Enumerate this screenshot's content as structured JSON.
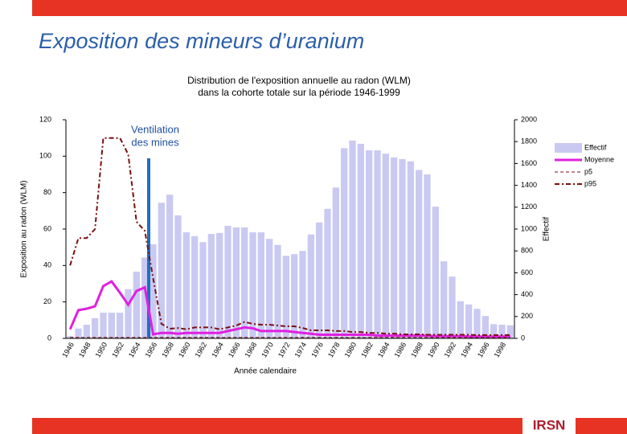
{
  "header": {
    "title": "Exposition des mineurs d’uranium",
    "logo": "IRSN"
  },
  "chart_data": {
    "type": "combo",
    "title": [
      "Distribution de l'exposition annuelle au radon (WLM)",
      "dans la cohorte totale sur la période 1946-1999"
    ],
    "xlabel": "Année calendaire",
    "ylabel": "Exposition au radon (WLM)",
    "y2label": "Effectif",
    "annotation": [
      "Ventilation",
      "des mines"
    ],
    "categories": [
      "1946",
      null,
      "1948",
      null,
      "1950",
      null,
      "1952",
      null,
      "1954",
      null,
      "1956",
      null,
      "1958",
      null,
      "1960",
      null,
      "1962",
      null,
      "1964",
      null,
      "1966",
      null,
      "1968",
      null,
      "1970",
      null,
      "1972",
      null,
      "1974",
      null,
      "1976",
      null,
      "1978",
      null,
      "1980",
      null,
      "1982",
      null,
      "1984",
      null,
      "1986",
      null,
      "1988",
      null,
      "1990",
      null,
      "1992",
      null,
      "1994",
      null,
      "1996",
      null,
      "1998",
      null
    ],
    "ylim": [
      0,
      120
    ],
    "yticks": [
      0,
      20,
      40,
      60,
      80,
      100,
      120
    ],
    "y2lim": [
      0,
      2000
    ],
    "y2ticks": [
      0,
      200,
      400,
      600,
      800,
      1000,
      1200,
      1400,
      1600,
      1800,
      2000
    ],
    "series": [
      {
        "name": "Effectif",
        "type": "bar",
        "axis": "y2",
        "color": "#c9c9f2",
        "values": [
          20,
          90,
          125,
          185,
          235,
          235,
          235,
          450,
          610,
          740,
          860,
          1240,
          1315,
          1125,
          970,
          935,
          880,
          955,
          965,
          1030,
          1015,
          1015,
          970,
          970,
          910,
          855,
          755,
          770,
          800,
          950,
          1060,
          1185,
          1380,
          1740,
          1810,
          1780,
          1720,
          1720,
          1690,
          1655,
          1640,
          1620,
          1540,
          1500,
          1205,
          705,
          565,
          340,
          310,
          270,
          205,
          130,
          125,
          120
        ]
      },
      {
        "name": "Moyenne",
        "type": "line",
        "color": "#e020e0",
        "width": 3,
        "dash": "solid",
        "values": [
          5,
          15.5,
          16.3,
          17.6,
          28.7,
          31.3,
          25,
          18.5,
          26,
          28,
          2.2,
          3,
          3,
          2.5,
          3,
          3,
          3,
          3,
          3,
          4,
          5,
          6,
          5.5,
          4,
          4,
          4,
          4,
          3.5,
          3,
          2.5,
          2,
          2,
          2,
          2,
          2,
          2,
          2,
          1.5,
          1.5,
          1.5,
          1.5,
          1.5,
          1.5,
          1.5,
          1.2,
          1.2,
          1.2,
          1.2,
          1,
          1,
          1,
          1,
          1,
          1
        ]
      },
      {
        "name": "p5",
        "type": "line",
        "color": "#7a1010",
        "width": 1,
        "dash": "dashed",
        "values": [
          0.5,
          0.5,
          0.5,
          0.5,
          0.5,
          0.5,
          0.5,
          0.5,
          0.5,
          0.5,
          0.5,
          0.5,
          0.5,
          0.5,
          0.5,
          0.5,
          0.5,
          0.5,
          0.5,
          0.5,
          0.5,
          0.5,
          0.5,
          0.5,
          0.5,
          0.5,
          0.5,
          0.5,
          0.5,
          0.5,
          0.5,
          0.5,
          0.5,
          0.5,
          0.5,
          0.5,
          0.5,
          0.5,
          0.5,
          0.5,
          0.5,
          0.5,
          0.5,
          0.5,
          0.5,
          0.5,
          0.5,
          0.5,
          0.5,
          0.5,
          0.5,
          0.5,
          0.5,
          0.5
        ]
      },
      {
        "name": "p95",
        "type": "line",
        "color": "#7a1010",
        "width": 2,
        "dash": "dashdot",
        "values": [
          40,
          55,
          55,
          60,
          110,
          110,
          110,
          101,
          64,
          59,
          33,
          8,
          5.3,
          5.7,
          5,
          6,
          6,
          6,
          5,
          6,
          7,
          9,
          8,
          7.5,
          7.5,
          7,
          6.6,
          6.6,
          5.7,
          4.4,
          4.4,
          4.4,
          4,
          4,
          3.5,
          3.5,
          3,
          3,
          2.6,
          2.6,
          2.2,
          2.2,
          2.2,
          2,
          2,
          2,
          2,
          2,
          2,
          1.8,
          1.8,
          1.8,
          1.8,
          1.8
        ]
      }
    ]
  }
}
